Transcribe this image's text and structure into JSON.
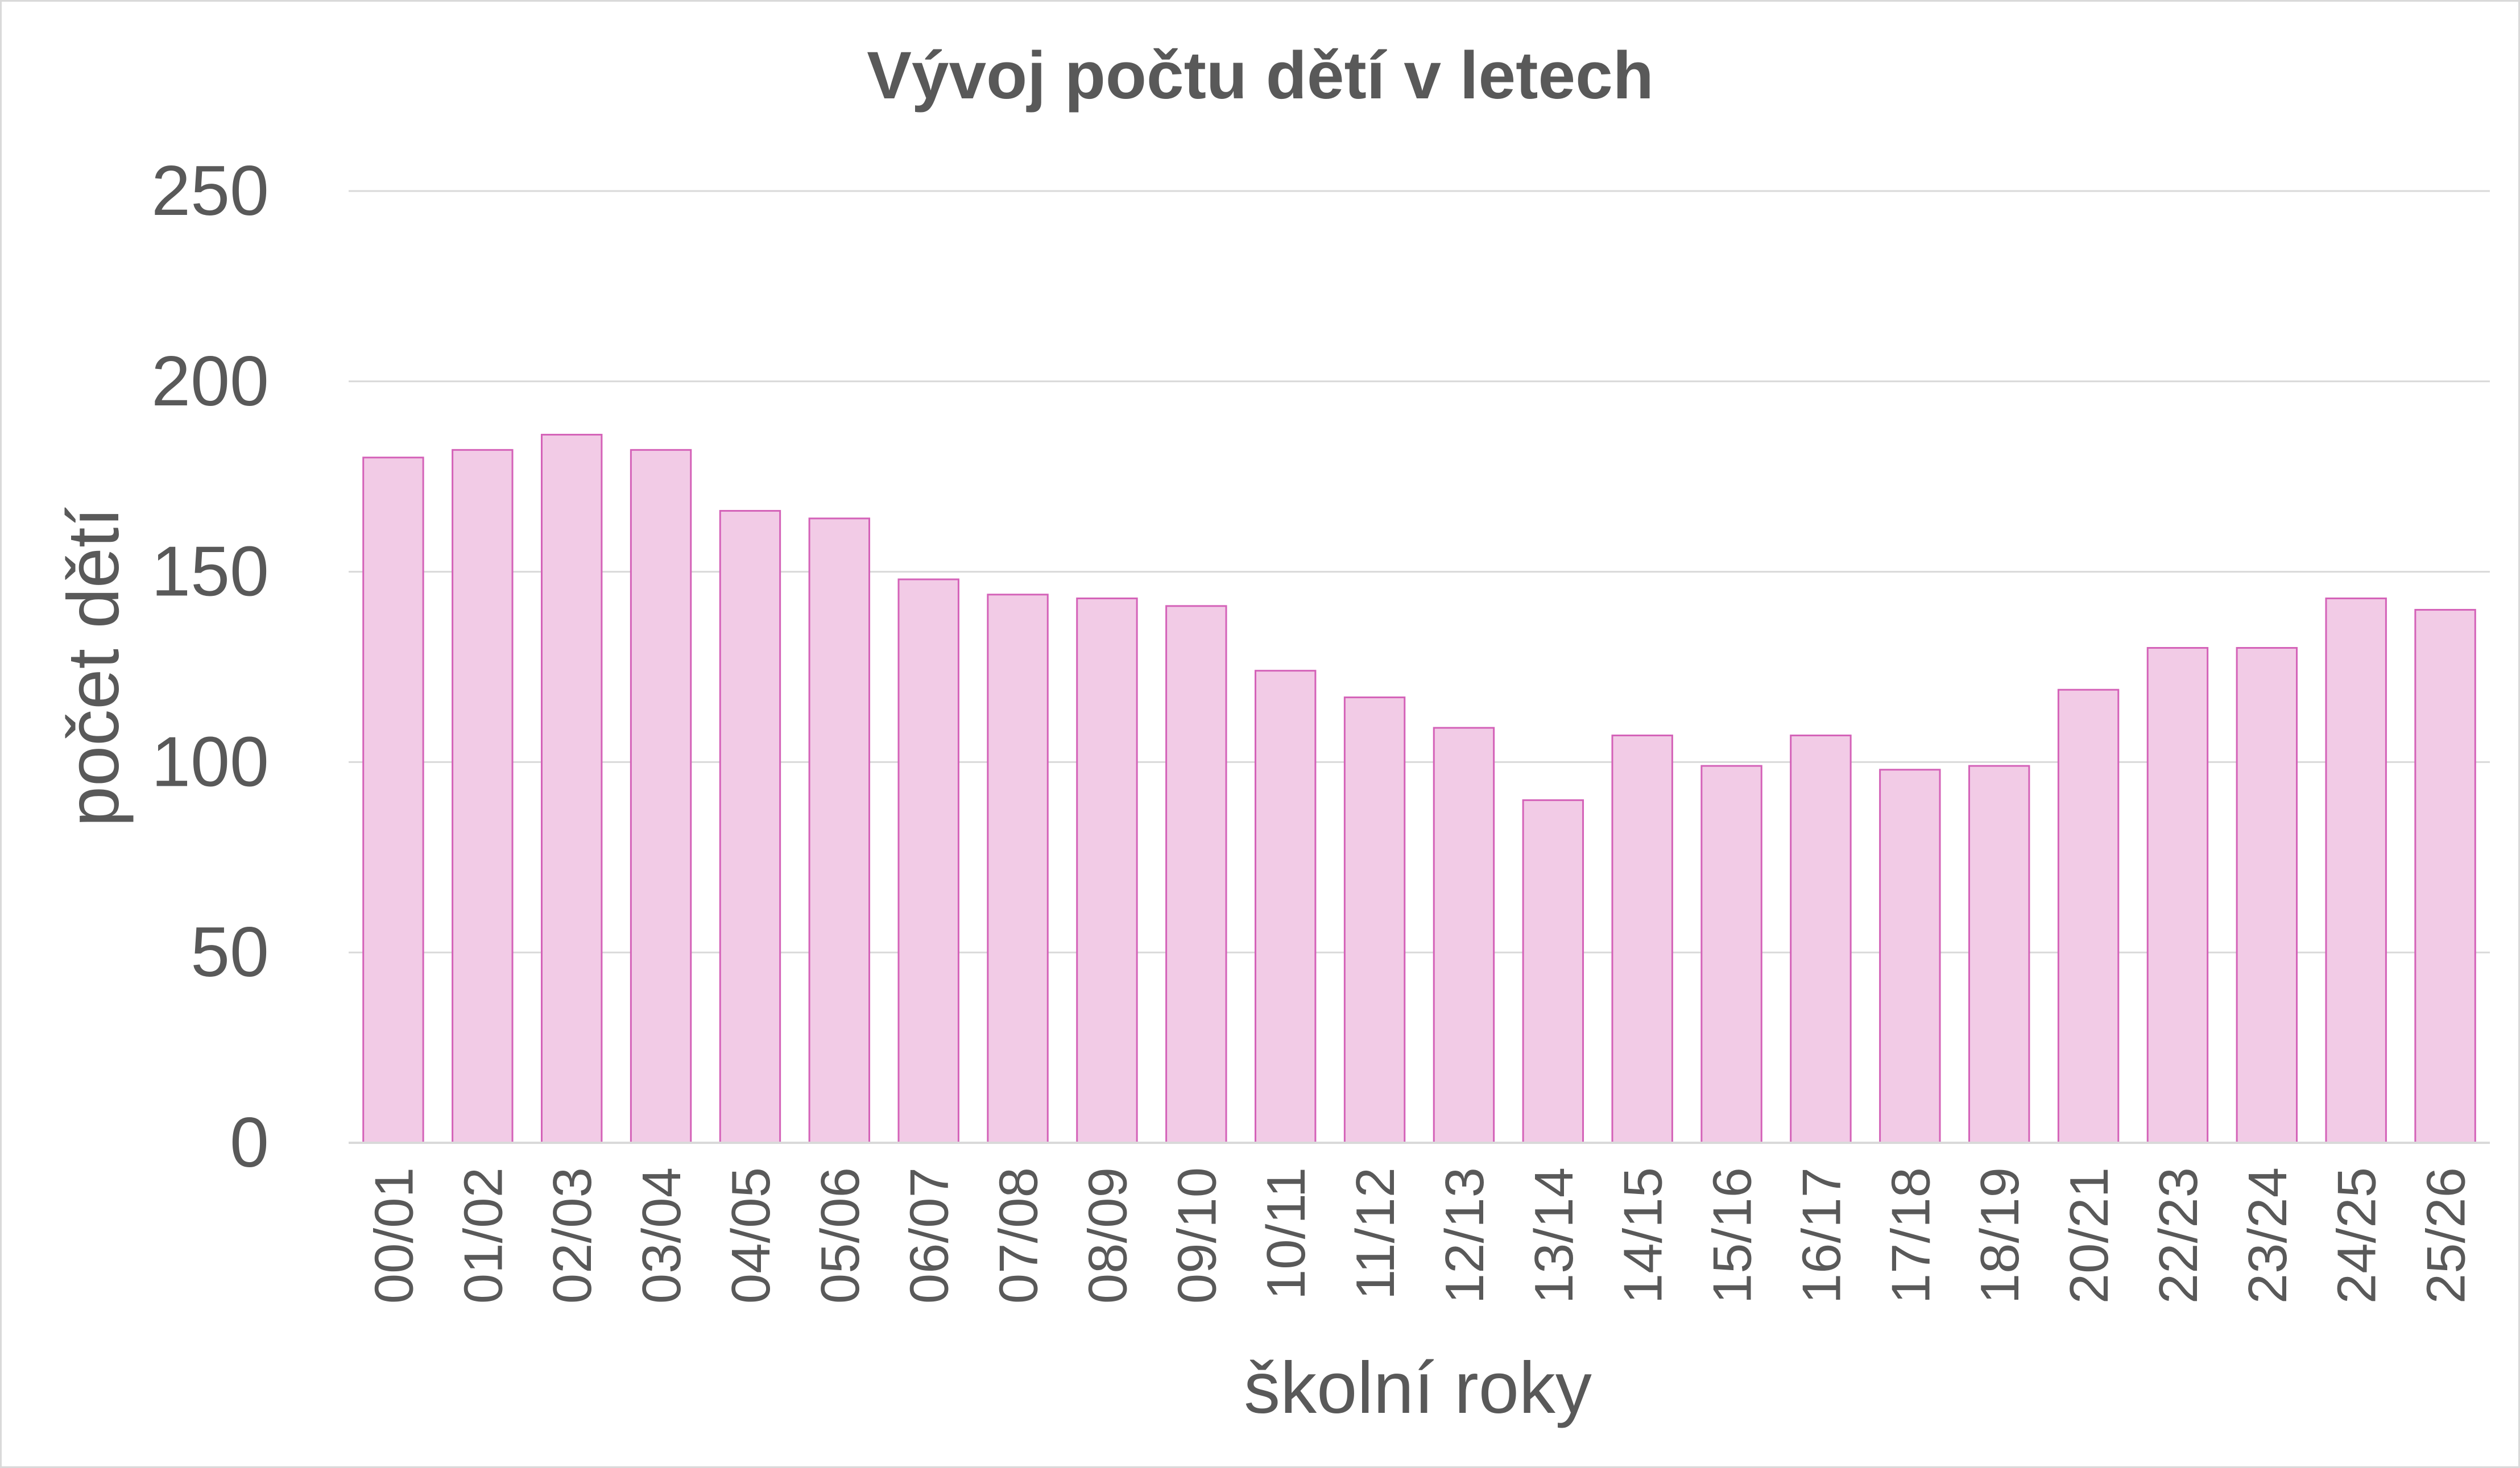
{
  "chart_data": {
    "type": "bar",
    "title": "Vývoj počtu dětí v letech",
    "xlabel": "školní roky",
    "ylabel": "počet dětí",
    "ylim": [
      0,
      250
    ],
    "yticks": [
      0,
      50,
      100,
      150,
      200,
      250
    ],
    "grid": true,
    "legend": "none",
    "categories": [
      "00/01",
      "01/02",
      "02/03",
      "03/04",
      "04/05",
      "05/06",
      "06/07",
      "07/08",
      "08/09",
      "09/10",
      "10/11",
      "11/12",
      "12/13",
      "13/14",
      "14/15",
      "15/16",
      "16/17",
      "17/18",
      "18/19",
      "20/21",
      "22/23",
      "23/24",
      "24/25",
      "25/26"
    ],
    "values": [
      180,
      182,
      186,
      182,
      166,
      164,
      148,
      144,
      143,
      141,
      124,
      117,
      109,
      90,
      107,
      99,
      107,
      98,
      99,
      119,
      130,
      130,
      143,
      140
    ],
    "colors": {
      "bar_fill": "#f2cbe6",
      "bar_stroke": "#d462b8",
      "text": "#595959",
      "grid": "#d9d9d9"
    }
  }
}
